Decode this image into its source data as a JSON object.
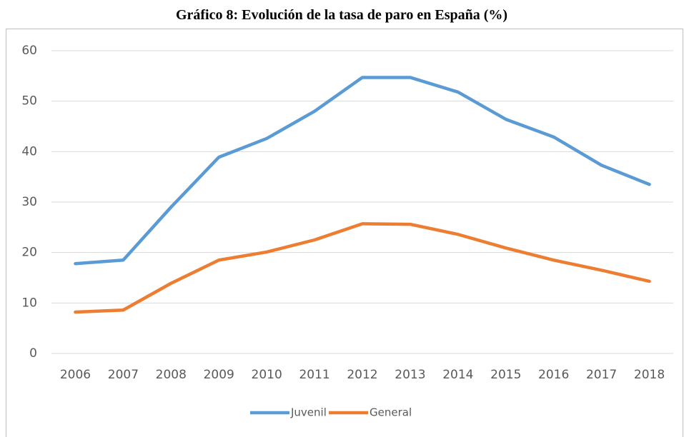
{
  "chart_data": {
    "type": "line",
    "title": "Gráfico 8: Evolución de la tasa de paro en España (%)",
    "categories": [
      "2006",
      "2007",
      "2008",
      "2009",
      "2010",
      "2011",
      "2012",
      "2013",
      "2014",
      "2015",
      "2016",
      "2017",
      "2018"
    ],
    "series": [
      {
        "name": "Juvenil",
        "color": "#5b9bd5",
        "values": [
          17.8,
          18.5,
          29,
          38.9,
          42.6,
          48,
          54.7,
          54.7,
          51.8,
          46.4,
          42.9,
          37.3,
          33.5
        ]
      },
      {
        "name": "General",
        "color": "#ed7d31",
        "values": [
          8.2,
          8.6,
          13.9,
          18.5,
          20.1,
          22.5,
          25.7,
          25.6,
          23.6,
          20.9,
          18.5,
          16.5,
          14.3
        ]
      }
    ],
    "ylim": [
      0,
      60
    ],
    "yticks": [
      0,
      10,
      20,
      30,
      40,
      50,
      60
    ],
    "grid": true,
    "legend": "bottom"
  }
}
